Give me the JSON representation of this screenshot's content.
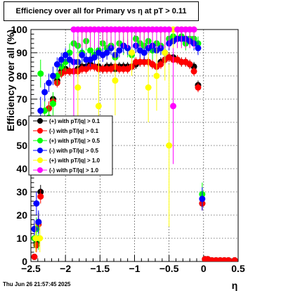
{
  "title": "Efficiency over all for Primary vs   η at pT > 0.11",
  "timestamp": "Thu Jun 26 21:57:45 2025",
  "colors": {
    "frame": "#000000",
    "grid": "#000000",
    "background": "#ffffff"
  },
  "chart_data": {
    "type": "scatter",
    "xlabel": "η",
    "ylabel": "Efficiency over all (%)",
    "xlim": [
      -2.5,
      0.5
    ],
    "ylim": [
      0,
      100
    ],
    "grid": true,
    "legend_position": "middle-left",
    "x_ticks": [
      "−2.5",
      "−2",
      "−1.5",
      "−1",
      "−0.5",
      "0",
      "0.5"
    ],
    "y_ticks": [
      "0",
      "10",
      "20",
      "30",
      "40",
      "50",
      "60",
      "70",
      "80",
      "90",
      "100"
    ],
    "series": [
      {
        "name": "(+) with pT/|q| > 0.1",
        "color": "#000000",
        "x": [
          -2.45,
          -2.42,
          -2.39,
          -2.36,
          -2.3,
          -2.24,
          -2.18,
          -2.12,
          -2.06,
          -2,
          -1.94,
          -1.88,
          -1.82,
          -1.76,
          -1.7,
          -1.64,
          -1.58,
          -1.52,
          -1.46,
          -1.4,
          -1.34,
          -1.28,
          -1.22,
          -1.16,
          -1.1,
          -1.04,
          -0.98,
          -0.92,
          -0.86,
          -0.8,
          -0.74,
          -0.68,
          -0.62,
          -0.56,
          -0.5,
          -0.44,
          -0.38,
          -0.32,
          -0.26,
          -0.2,
          -0.14,
          -0.08,
          -0.02,
          0.02,
          0.06,
          0.12,
          0.18,
          0.24,
          0.3,
          0.36,
          0.45
        ],
        "y": [
          2,
          8,
          17,
          30,
          55,
          66,
          70,
          78,
          82,
          83,
          82,
          82,
          83,
          84,
          84,
          85,
          84,
          84,
          83,
          84,
          84,
          83,
          84,
          84,
          84,
          84,
          85,
          86,
          86,
          86,
          85,
          84,
          86,
          87,
          88,
          88,
          87,
          86,
          86,
          85,
          84,
          76,
          25,
          1,
          1,
          0.5,
          0.5,
          0.5,
          0.5,
          0.5,
          0.5
        ],
        "err": [
          0,
          3,
          4,
          3,
          3,
          3,
          2,
          2,
          2,
          2,
          2,
          2,
          2,
          2,
          2,
          2,
          2,
          2,
          2,
          2,
          2,
          2,
          2,
          2,
          2,
          2,
          2,
          2,
          2,
          2,
          2,
          2,
          2,
          2,
          2,
          2,
          2,
          2,
          2,
          2,
          2,
          2,
          3,
          0,
          0,
          0,
          0,
          0,
          0,
          0,
          0
        ]
      },
      {
        "name": "(-) with pT/|q| > 0.1",
        "color": "#ff0000",
        "x": [
          -2.45,
          -2.42,
          -2.39,
          -2.36,
          -2.3,
          -2.24,
          -2.18,
          -2.12,
          -2.06,
          -2,
          -1.94,
          -1.88,
          -1.82,
          -1.76,
          -1.7,
          -1.64,
          -1.58,
          -1.52,
          -1.46,
          -1.4,
          -1.34,
          -1.28,
          -1.22,
          -1.16,
          -1.1,
          -1.04,
          -0.98,
          -0.92,
          -0.86,
          -0.8,
          -0.74,
          -0.68,
          -0.62,
          -0.56,
          -0.5,
          -0.44,
          -0.38,
          -0.32,
          -0.26,
          -0.2,
          -0.14,
          -0.08,
          -0.02,
          0.02,
          0.06,
          0.12,
          0.18,
          0.24,
          0.3,
          0.36,
          0.45
        ],
        "y": [
          2,
          7,
          16,
          28,
          54,
          66,
          69,
          77,
          81,
          82,
          82,
          82,
          82,
          83,
          83,
          84,
          84,
          83,
          83,
          83,
          83,
          84,
          83,
          83,
          83,
          84,
          86,
          86,
          86,
          86,
          85,
          84,
          85,
          87,
          88,
          87,
          87,
          86,
          86,
          85,
          82,
          75,
          25,
          1,
          1,
          0.5,
          0.5,
          0.5,
          0.5,
          0.5,
          0.5
        ],
        "err": [
          0,
          3,
          4,
          3,
          3,
          3,
          2,
          2,
          2,
          2,
          2,
          2,
          2,
          2,
          2,
          2,
          2,
          2,
          2,
          2,
          2,
          2,
          2,
          2,
          2,
          2,
          2,
          2,
          2,
          2,
          2,
          2,
          2,
          2,
          2,
          2,
          2,
          2,
          2,
          2,
          2,
          2,
          3,
          0,
          0,
          0,
          0,
          0,
          0,
          0,
          0
        ]
      },
      {
        "name": "(+) with pT/|q| > 0.5",
        "color": "#00ff00",
        "x": [
          -2.45,
          -2.42,
          -2.39,
          -2.36,
          -2.3,
          -2.24,
          -2.18,
          -2.12,
          -2.06,
          -2,
          -1.94,
          -1.88,
          -1.82,
          -1.76,
          -1.7,
          -1.64,
          -1.58,
          -1.52,
          -1.46,
          -1.4,
          -1.34,
          -1.28,
          -1.22,
          -1.16,
          -1.1,
          -1.04,
          -0.98,
          -0.92,
          -0.86,
          -0.8,
          -0.74,
          -0.68,
          -0.62,
          -0.56,
          -0.5,
          -0.44,
          -0.38,
          -0.32,
          -0.26,
          -0.2,
          -0.14,
          -0.08,
          -0.02
        ],
        "y": [
          10,
          14,
          10,
          81,
          65,
          62,
          68,
          80,
          84,
          86,
          90,
          94,
          93,
          90,
          95,
          91,
          89,
          91,
          94,
          92,
          93,
          88,
          94,
          93,
          92,
          89,
          96,
          94,
          93,
          95,
          91,
          94,
          93,
          90,
          96,
          97,
          96,
          97,
          94,
          96,
          96,
          94,
          29
        ],
        "err": [
          4,
          5,
          5,
          6,
          5,
          5,
          5,
          4,
          4,
          4,
          4,
          4,
          4,
          4,
          4,
          4,
          4,
          4,
          4,
          4,
          4,
          4,
          4,
          4,
          4,
          4,
          4,
          4,
          4,
          4,
          4,
          4,
          4,
          4,
          4,
          3,
          3,
          3,
          3,
          3,
          3,
          3,
          5
        ]
      },
      {
        "name": "(-) with pT/|q| > 0.5",
        "color": "#0000ff",
        "x": [
          -2.45,
          -2.42,
          -2.39,
          -2.36,
          -2.3,
          -2.24,
          -2.18,
          -2.12,
          -2.06,
          -2,
          -1.94,
          -1.88,
          -1.82,
          -1.76,
          -1.7,
          -1.64,
          -1.58,
          -1.52,
          -1.46,
          -1.4,
          -1.34,
          -1.28,
          -1.22,
          -1.16,
          -1.1,
          -1.04,
          -0.98,
          -0.92,
          -0.86,
          -0.8,
          -0.74,
          -0.68,
          -0.62,
          -0.56,
          -0.5,
          -0.44,
          -0.38,
          -0.32,
          -0.26,
          -0.2,
          -0.14,
          -0.08,
          -0.02
        ],
        "y": [
          14,
          25,
          17,
          65,
          73,
          77,
          80,
          85,
          87,
          89,
          87,
          86,
          86,
          89,
          87,
          87,
          88,
          90,
          89,
          90,
          92,
          89,
          91,
          93,
          92,
          90,
          93,
          91,
          90,
          92,
          93,
          91,
          92,
          90,
          94,
          95,
          96,
          96,
          96,
          95,
          94,
          92,
          27
        ],
        "err": [
          4,
          5,
          5,
          6,
          4,
          4,
          4,
          3,
          3,
          3,
          3,
          3,
          3,
          3,
          3,
          3,
          3,
          3,
          3,
          3,
          3,
          3,
          3,
          3,
          3,
          3,
          3,
          3,
          3,
          3,
          3,
          3,
          3,
          3,
          3,
          3,
          3,
          3,
          3,
          3,
          3,
          3,
          5
        ]
      },
      {
        "name": "(+) with pT/|q| > 1.0",
        "color": "#ffff00",
        "x": [
          -2.43,
          -2.37,
          -1.82,
          -1.76,
          -1.7,
          -1.64,
          -1.58,
          -1.52,
          -1.46,
          -1.4,
          -1.34,
          -1.28,
          -1.22,
          -1.16,
          -1.1,
          -1.04,
          -0.98,
          -0.92,
          -0.86,
          -0.8,
          -0.74,
          -0.68,
          -0.62,
          -0.56,
          -0.5,
          -0.44,
          -0.38,
          -0.32,
          -0.26,
          -0.2,
          -0.14
        ],
        "y": [
          10,
          10,
          75,
          100,
          100,
          100,
          100,
          67,
          100,
          100,
          100,
          78,
          100,
          100,
          100,
          90,
          100,
          100,
          100,
          75,
          100,
          80,
          100,
          90,
          50,
          100,
          100,
          100,
          100,
          100,
          100
        ],
        "err": [
          6,
          6,
          15,
          8,
          8,
          8,
          8,
          20,
          8,
          8,
          8,
          15,
          8,
          8,
          8,
          10,
          8,
          8,
          8,
          15,
          8,
          15,
          8,
          12,
          35,
          8,
          8,
          8,
          8,
          8,
          8
        ]
      },
      {
        "name": "(-) with pT/|q| > 1.0",
        "color": "#ff00ff",
        "x": [
          -1.88,
          -1.82,
          -1.76,
          -1.7,
          -1.64,
          -1.58,
          -1.52,
          -1.46,
          -1.4,
          -1.34,
          -1.28,
          -1.22,
          -1.16,
          -1.1,
          -1.04,
          -0.98,
          -0.92,
          -0.86,
          -0.8,
          -0.74,
          -0.68,
          -0.62,
          -0.56,
          -0.5,
          -0.44,
          -0.38,
          -0.32,
          -0.26,
          -0.2,
          -0.14
        ],
        "y": [
          100,
          100,
          100,
          100,
          100,
          100,
          100,
          100,
          100,
          100,
          100,
          100,
          100,
          100,
          100,
          100,
          100,
          100,
          100,
          100,
          100,
          100,
          100,
          100,
          67,
          100,
          100,
          100,
          100,
          100
        ],
        "err": [
          40,
          8,
          8,
          8,
          8,
          8,
          8,
          8,
          8,
          8,
          8,
          8,
          8,
          8,
          8,
          8,
          8,
          8,
          8,
          8,
          8,
          8,
          8,
          8,
          25,
          8,
          8,
          8,
          8,
          8
        ]
      }
    ]
  }
}
